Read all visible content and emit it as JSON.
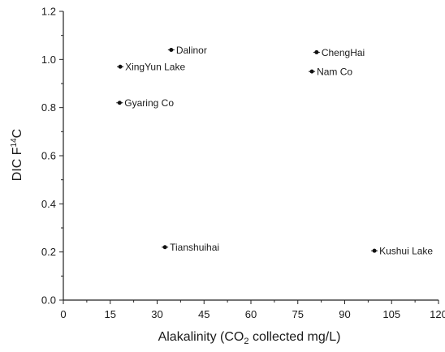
{
  "chart_data": {
    "type": "scatter",
    "xlabel": "Alakalinity (CO",
    "xlabel_sub": "2",
    "xlabel_rest": " collected mg/L)",
    "ylabel": "DIC F",
    "ylabel_sup": "14",
    "ylabel_rest": "C",
    "xlim": [
      0,
      120
    ],
    "ylim": [
      0,
      1.2
    ],
    "x_ticks": [
      "0",
      "15",
      "30",
      "45",
      "60",
      "75",
      "90",
      "105",
      "120"
    ],
    "y_ticks": [
      "0.0",
      "0.2",
      "0.4",
      "0.6",
      "0.8",
      "1.0",
      "1.2"
    ],
    "grid": false,
    "marker_color": "#111111",
    "points": [
      {
        "label": "Dalinor",
        "x": 34.5,
        "y": 1.04
      },
      {
        "label": "XingYun Lake",
        "x": 18.2,
        "y": 0.97
      },
      {
        "label": "Gyaring Co",
        "x": 18.0,
        "y": 0.82
      },
      {
        "label": "ChengHai",
        "x": 81.0,
        "y": 1.03
      },
      {
        "label": "Nam Co",
        "x": 79.5,
        "y": 0.95
      },
      {
        "label": "Tianshuihai",
        "x": 32.5,
        "y": 0.22
      },
      {
        "label": "Kushui Lake",
        "x": 99.5,
        "y": 0.205
      }
    ]
  }
}
